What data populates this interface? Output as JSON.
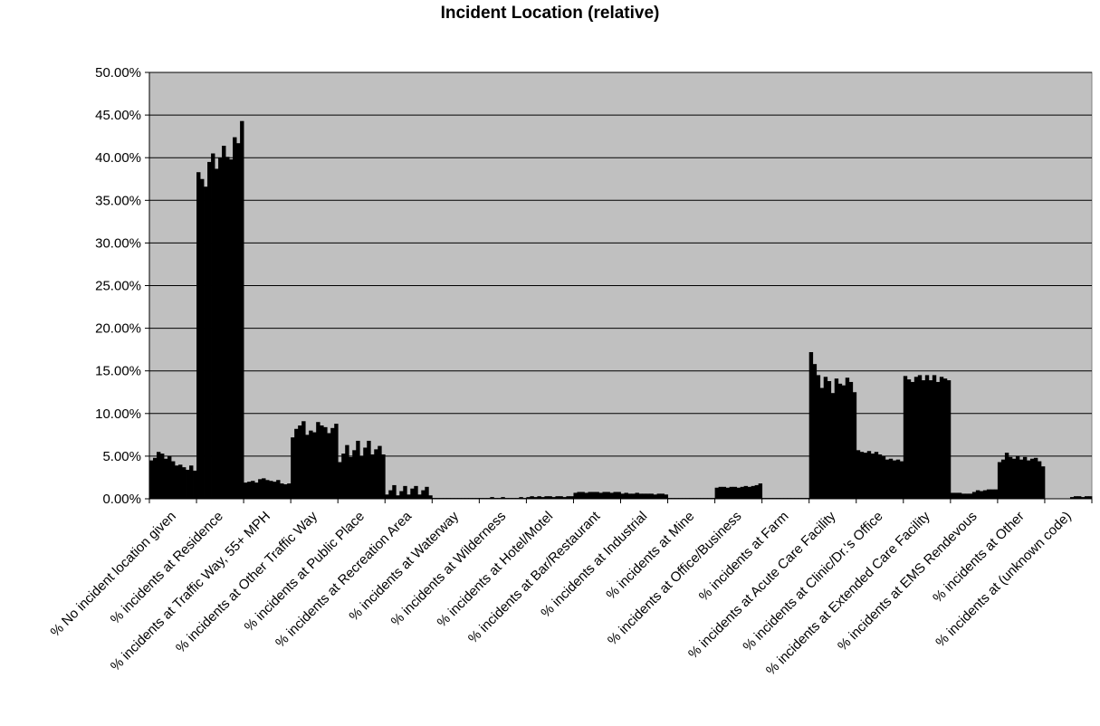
{
  "chart_data": {
    "type": "bar",
    "title": "Incident Location (relative)",
    "xlabel": "",
    "ylabel": "",
    "ylim": [
      0,
      0.5
    ],
    "ytick_values": [
      0,
      0.05,
      0.1,
      0.15,
      0.2,
      0.25,
      0.3,
      0.35,
      0.4,
      0.45,
      0.5
    ],
    "ytick_labels": [
      "0.00%",
      "5.00%",
      "10.00%",
      "15.00%",
      "20.00%",
      "25.00%",
      "30.00%",
      "35.00%",
      "40.00%",
      "45.00%",
      "50.00%"
    ],
    "grid": true,
    "legend": "none",
    "colors": {
      "plot_background": "#c0c0c0",
      "bars": "#000000",
      "grid": "#000000"
    },
    "categories": [
      "% No incident location given",
      "% incidents at Residence",
      "% incidents at Traffic Way, 55+ MPH",
      "% incidents at Other Traffic Way",
      "% incidents at Public Place",
      "% incidents at Recreation Area",
      "% incidents at Waterway",
      "% incidents at Wilderness",
      "% incidents at Hotel/Motel",
      "% incidents at Bar/Restaurant",
      "% incidents at Industrial",
      "% incidents at Mine",
      "% incidents at Office/Business",
      "% incidents at Farm",
      "% incidents at Acute Care Facility",
      "% incidents at Clinic/Dr.'s Office",
      "% incidents at Extended Care Facility",
      "% incidents at EMS Rendevous",
      "% incidents at Other",
      "% incidents at (unknown code)"
    ],
    "values": [
      [
        0.045,
        0.048,
        0.055,
        0.053,
        0.047,
        0.05,
        0.044,
        0.039,
        0.04,
        0.037,
        0.034,
        0.039,
        0.033
      ],
      [
        0.383,
        0.375,
        0.366,
        0.395,
        0.405,
        0.387,
        0.4,
        0.414,
        0.401,
        0.398,
        0.424,
        0.417,
        0.443
      ],
      [
        0.019,
        0.02,
        0.021,
        0.019,
        0.023,
        0.024,
        0.022,
        0.021,
        0.02,
        0.022,
        0.018,
        0.017,
        0.018
      ],
      [
        0.072,
        0.082,
        0.086,
        0.091,
        0.075,
        0.08,
        0.078,
        0.09,
        0.086,
        0.084,
        0.077,
        0.083,
        0.088
      ],
      [
        0.043,
        0.053,
        0.063,
        0.049,
        0.057,
        0.068,
        0.05,
        0.06,
        0.068,
        0.052,
        0.058,
        0.062,
        0.052
      ],
      [
        0.005,
        0.01,
        0.016,
        0.004,
        0.009,
        0.015,
        0.005,
        0.012,
        0.015,
        0.005,
        0.01,
        0.014,
        0.004
      ],
      [
        0.001,
        0.001,
        0.001,
        0.001,
        0.001,
        0.001,
        0.001,
        0.001,
        0.001,
        0.001,
        0.001,
        0.001,
        0.001
      ],
      [
        0.001,
        0.001,
        0.001,
        0.002,
        0.001,
        0.001,
        0.002,
        0.001,
        0.001,
        0.001,
        0.001,
        0.002,
        0.001
      ],
      [
        0.002,
        0.003,
        0.002,
        0.003,
        0.002,
        0.003,
        0.003,
        0.002,
        0.003,
        0.003,
        0.002,
        0.003,
        0.003
      ],
      [
        0.007,
        0.008,
        0.008,
        0.007,
        0.008,
        0.008,
        0.008,
        0.007,
        0.008,
        0.008,
        0.007,
        0.008,
        0.008
      ],
      [
        0.006,
        0.007,
        0.006,
        0.006,
        0.007,
        0.006,
        0.006,
        0.006,
        0.006,
        0.005,
        0.006,
        0.006,
        0.005
      ],
      [
        0.001,
        0.001,
        0.001,
        0.001,
        0.001,
        0.001,
        0.001,
        0.001,
        0.001,
        0.001,
        0.001,
        0.001,
        0.001
      ],
      [
        0.013,
        0.014,
        0.014,
        0.013,
        0.014,
        0.014,
        0.013,
        0.014,
        0.015,
        0.014,
        0.015,
        0.016,
        0.018
      ],
      [
        0.001,
        0.001,
        0.001,
        0.001,
        0.001,
        0.001,
        0.001,
        0.001,
        0.001,
        0.001,
        0.001,
        0.001,
        0.001
      ],
      [
        0.172,
        0.158,
        0.145,
        0.13,
        0.143,
        0.138,
        0.124,
        0.141,
        0.135,
        0.133,
        0.142,
        0.137,
        0.125
      ],
      [
        0.057,
        0.055,
        0.054,
        0.056,
        0.053,
        0.055,
        0.052,
        0.05,
        0.046,
        0.047,
        0.045,
        0.046,
        0.044
      ],
      [
        0.144,
        0.14,
        0.137,
        0.143,
        0.145,
        0.139,
        0.145,
        0.139,
        0.145,
        0.137,
        0.143,
        0.141,
        0.139
      ],
      [
        0.007,
        0.007,
        0.007,
        0.006,
        0.006,
        0.006,
        0.008,
        0.01,
        0.009,
        0.01,
        0.011,
        0.011,
        0.011
      ],
      [
        0.043,
        0.046,
        0.054,
        0.049,
        0.047,
        0.05,
        0.046,
        0.049,
        0.045,
        0.047,
        0.048,
        0.044,
        0.038
      ],
      [
        0.0,
        0.0,
        0.0,
        0.0,
        0.0,
        0.0,
        0.0,
        0.002,
        0.003,
        0.003,
        0.002,
        0.003,
        0.003
      ]
    ]
  }
}
